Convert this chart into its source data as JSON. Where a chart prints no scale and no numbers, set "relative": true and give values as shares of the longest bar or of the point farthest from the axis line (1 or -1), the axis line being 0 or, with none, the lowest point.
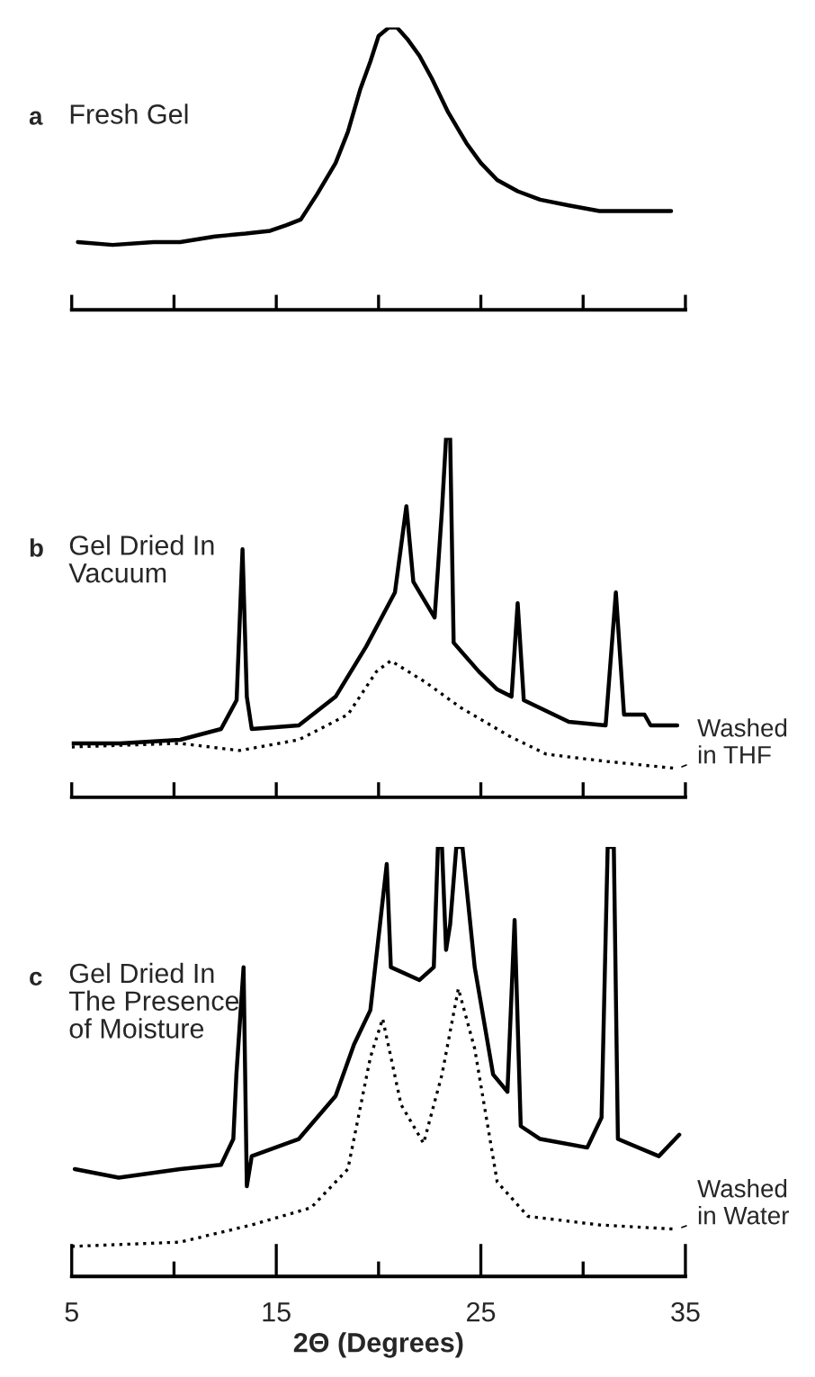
{
  "chart_data": [
    {
      "type": "line",
      "title": "Fresh Gel",
      "annotations": [
        "a"
      ],
      "relative": true,
      "xlim": [
        5,
        35
      ],
      "xticks": [
        {
          "value": 5,
          "label": null
        },
        {
          "value": 10,
          "label": null
        },
        {
          "value": 15,
          "label": null
        },
        {
          "value": 20,
          "label": null
        },
        {
          "value": 25,
          "label": null
        },
        {
          "value": 30,
          "label": null
        },
        {
          "value": 35,
          "label": null
        }
      ],
      "tick_labels": false,
      "series": [
        {
          "color": "#000000",
          "line_style": "solid",
          "x": [
            5.3,
            7,
            9,
            10.3,
            12,
            13.5,
            14.7,
            15.5,
            16.2,
            17,
            17.9,
            18.5,
            19.1,
            19.6,
            20,
            20.5,
            20.9,
            21.4,
            22,
            22.6,
            23.4,
            24.3,
            25,
            25.8,
            26.8,
            27.9,
            29.3,
            30.8,
            32.5,
            34.3
          ],
          "values": [
            0.24,
            0.23,
            0.24,
            0.24,
            0.26,
            0.27,
            0.28,
            0.3,
            0.32,
            0.41,
            0.52,
            0.63,
            0.78,
            0.88,
            0.97,
            1.0,
            1.0,
            0.96,
            0.9,
            0.82,
            0.7,
            0.59,
            0.52,
            0.46,
            0.42,
            0.39,
            0.37,
            0.35,
            0.35,
            0.35
          ]
        }
      ]
    },
    {
      "type": "line",
      "title": "Gel Dried In\nVacuum",
      "annotations": [
        "b"
      ],
      "relative": true,
      "xlim": [
        5,
        35
      ],
      "xticks": [
        {
          "value": 5,
          "label": null
        },
        {
          "value": 10,
          "label": null
        },
        {
          "value": 15,
          "label": null
        },
        {
          "value": 20,
          "label": null
        },
        {
          "value": 25,
          "label": null
        },
        {
          "value": 30,
          "label": null
        },
        {
          "value": 35,
          "label": null
        }
      ],
      "tick_labels": false,
      "series": [
        {
          "color": "#000000",
          "line_style": "solid",
          "x": [
            5.0,
            7.35,
            10.3,
            12.3,
            13.06,
            13.35,
            13.56,
            13.8,
            16.1,
            17.9,
            19.4,
            20.8,
            21.36,
            21.7,
            22.74,
            23.1,
            23.3,
            23.5,
            23.67,
            24.9,
            25.8,
            26.5,
            26.8,
            27.1,
            29.3,
            31.1,
            31.6,
            32.0,
            33.0,
            33.3,
            34.6
          ],
          "values": [
            0.15,
            0.15,
            0.16,
            0.19,
            0.27,
            0.69,
            0.28,
            0.19,
            0.2,
            0.28,
            0.42,
            0.57,
            0.81,
            0.6,
            0.5,
            0.8,
            1.0,
            1.0,
            0.43,
            0.35,
            0.3,
            0.28,
            0.54,
            0.27,
            0.21,
            0.2,
            0.57,
            0.23,
            0.23,
            0.2,
            0.2
          ]
        },
        {
          "name": "Washed\nin THF",
          "color": "#000000",
          "line_style": "dotted",
          "x": [
            5.0,
            10.3,
            13.2,
            16.1,
            18.5,
            19.9,
            20.6,
            22.3,
            24.0,
            26.4,
            28.2,
            31.1,
            34.6
          ],
          "values": [
            0.14,
            0.15,
            0.13,
            0.16,
            0.23,
            0.35,
            0.38,
            0.32,
            0.25,
            0.17,
            0.12,
            0.1,
            0.08
          ]
        }
      ]
    },
    {
      "type": "line",
      "title": "Gel Dried In\nThe Presence\nof Moisture",
      "annotations": [
        "c"
      ],
      "relative": true,
      "xlabel": "2Θ (Degrees)",
      "xlim": [
        5,
        35
      ],
      "xticks": [
        5,
        {
          "value": 10,
          "label": null
        },
        15,
        {
          "value": 20,
          "label": null
        },
        25,
        {
          "value": 30,
          "label": null
        },
        35
      ],
      "tick_labels": "x",
      "series": [
        {
          "color": "#000000",
          "line_style": "solid",
          "x": [
            5.15,
            7.3,
            10.3,
            12.3,
            12.9,
            13.05,
            13.4,
            13.56,
            13.8,
            16.1,
            17.9,
            18.8,
            19.6,
            20.4,
            20.6,
            22.0,
            22.7,
            22.9,
            23.1,
            23.3,
            23.5,
            23.8,
            24.1,
            24.7,
            25.6,
            26.3,
            26.65,
            26.95,
            27.9,
            30.2,
            30.9,
            31.2,
            31.5,
            31.7,
            33.7,
            34.7
          ],
          "values": [
            0.25,
            0.23,
            0.25,
            0.26,
            0.32,
            0.47,
            0.72,
            0.21,
            0.28,
            0.32,
            0.42,
            0.54,
            0.62,
            0.96,
            0.72,
            0.69,
            0.72,
            1.0,
            1.0,
            0.76,
            0.82,
            1.0,
            1.0,
            0.72,
            0.47,
            0.43,
            0.83,
            0.35,
            0.32,
            0.3,
            0.37,
            1.0,
            1.0,
            0.32,
            0.28,
            0.33
          ]
        },
        {
          "name": "Washed\nin Water",
          "color": "#000000",
          "line_style": "dotted",
          "x": [
            5.0,
            10.3,
            13.8,
            16.7,
            18.5,
            19.6,
            20.2,
            21.1,
            22.2,
            23.1,
            23.9,
            24.7,
            25.8,
            27.3,
            30.8,
            34.6
          ],
          "values": [
            0.07,
            0.08,
            0.12,
            0.16,
            0.25,
            0.51,
            0.6,
            0.4,
            0.31,
            0.47,
            0.67,
            0.53,
            0.22,
            0.14,
            0.12,
            0.11
          ]
        }
      ]
    }
  ]
}
